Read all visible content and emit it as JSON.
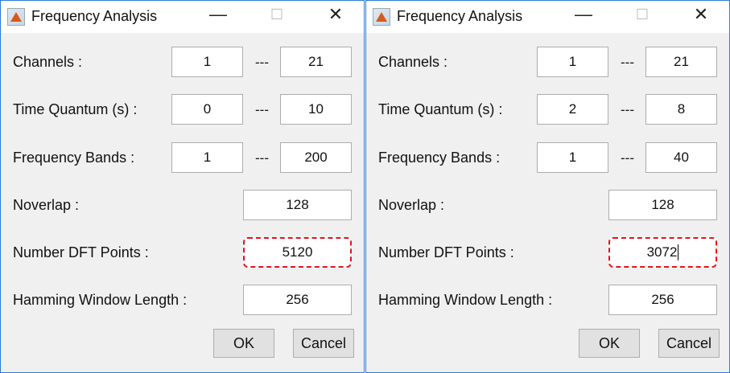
{
  "windows": [
    {
      "title": "Frequency Analysis",
      "channels": {
        "label": "Channels :",
        "from": "1",
        "to": "21"
      },
      "time": {
        "label": "Time Quantum (s) :",
        "from": "0",
        "to": "10"
      },
      "freq": {
        "label": "Frequency Bands :",
        "from": "1",
        "to": "200"
      },
      "noverlap": {
        "label": "Noverlap :",
        "value": "128"
      },
      "dft": {
        "label": "Number DFT Points :",
        "value": "5120"
      },
      "hamming": {
        "label": "Hamming Window Length :",
        "value": "256"
      },
      "separator": "---",
      "ok": "OK",
      "cancel": "Cancel"
    },
    {
      "title": "Frequency Analysis",
      "channels": {
        "label": "Channels :",
        "from": "1",
        "to": "21"
      },
      "time": {
        "label": "Time Quantum (s) :",
        "from": "2",
        "to": "8"
      },
      "freq": {
        "label": "Frequency Bands :",
        "from": "1",
        "to": "40"
      },
      "noverlap": {
        "label": "Noverlap :",
        "value": "128"
      },
      "dft": {
        "label": "Number DFT Points :",
        "value": "3072"
      },
      "hamming": {
        "label": "Hamming Window Length :",
        "value": "256"
      },
      "separator": "---",
      "ok": "OK",
      "cancel": "Cancel"
    }
  ],
  "highlight_color": "#e8121a"
}
